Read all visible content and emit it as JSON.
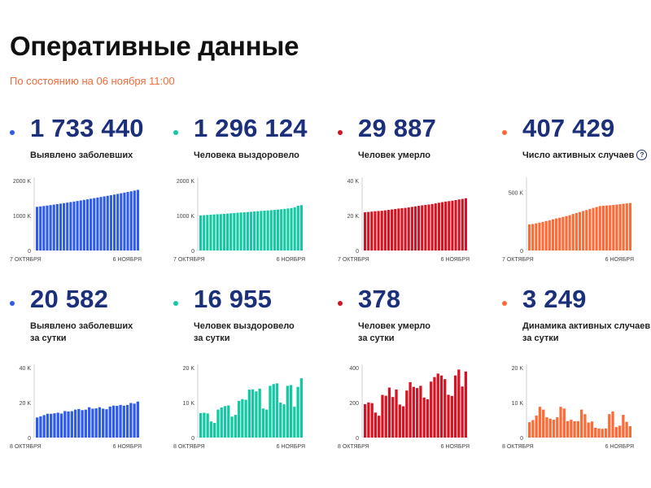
{
  "header": {
    "title": "Оперативные данные",
    "subtitle": "По состоянию на 06 ноября 11:00"
  },
  "cards": [
    {
      "id": "cases-total",
      "value": "1 733 440",
      "label": [
        "Выявлено заболевших"
      ],
      "color": "#2f5be9",
      "help": false,
      "chart_data": {
        "type": "bar",
        "yticks": [
          "0",
          "1000 K",
          "2000 K"
        ],
        "ylim": [
          0,
          2000000
        ],
        "xstart": "7 ОКТЯБРЯ",
        "xend": "6 НОЯБРЯ",
        "values": [
          1248619,
          1260112,
          1272238,
          1285084,
          1298718,
          1312310,
          1326178,
          1340409,
          1354163,
          1369313,
          1384235,
          1399334,
          1415316,
          1431635,
          1447335,
          1463306,
          1480646,
          1497167,
          1513877,
          1531224,
          1547774,
          1563976,
          1581693,
          1599976,
          1618116,
          1636781,
          1655038,
          1673686,
          1693454,
          1712858,
          1733440
        ]
      }
    },
    {
      "id": "recovered-total",
      "value": "1 296 124",
      "label": [
        "Человека выздоровело"
      ],
      "color": "#13c9a3",
      "help": false,
      "chart_data": {
        "type": "bar",
        "yticks": [
          "0",
          "1000 K",
          "2000 K"
        ],
        "ylim": [
          0,
          2000000
        ],
        "xstart": "7 ОКТЯБРЯ",
        "xend": "6 НОЯБРЯ",
        "values": [
          1003180,
          1010990,
          1016360,
          1023460,
          1030128,
          1036210,
          1040742,
          1048000,
          1056180,
          1064250,
          1071880,
          1079490,
          1087560,
          1093570,
          1099750,
          1107540,
          1116000,
          1123840,
          1131600,
          1139600,
          1146100,
          1152600,
          1160500,
          1170400,
          1180100,
          1190600,
          1201800,
          1213900,
          1236800,
          1279200,
          1296124
        ]
      }
    },
    {
      "id": "deaths-total",
      "value": "29 887",
      "label": [
        "Человек умерло"
      ],
      "color": "#d51322",
      "help": false,
      "chart_data": {
        "type": "bar",
        "yticks": [
          "0",
          "20 K",
          "40 K"
        ],
        "ylim": [
          0,
          40000
        ],
        "xstart": "7 ОКТЯБРЯ",
        "xend": "6 НОЯБРЯ",
        "values": [
          21865,
          22056,
          22257,
          22454,
          22597,
          22722,
          22966,
          23205,
          23491,
          23723,
          23998,
          24187,
          24366,
          24635,
          24952,
          25242,
          25525,
          25821,
          26050,
          26269,
          26589,
          26935,
          27301,
          27656,
          27990,
          28235,
          28473,
          28828,
          29217,
          29509,
          29887
        ]
      }
    },
    {
      "id": "active-total",
      "value": "407 429",
      "label": [
        "Число активных случаев"
      ],
      "color": "#fd6a36",
      "help": true,
      "chart_data": {
        "type": "bar",
        "yticks": [
          "0",
          "500 K"
        ],
        "ylim": [
          0,
          600000
        ],
        "xstart": "7 ОКТЯБРЯ",
        "xend": "6 НОЯБРЯ",
        "values": [
          224000,
          227000,
          233000,
          239000,
          245000,
          253000,
          259000,
          268000,
          275000,
          281000,
          288000,
          295000,
          303000,
          313000,
          322000,
          330000,
          339000,
          347000,
          356000,
          365000,
          373000,
          381000,
          384000,
          386000,
          388000,
          391000,
          394000,
          397000,
          401000,
          404000,
          407429
        ]
      }
    },
    {
      "id": "cases-daily",
      "value": "20 582",
      "label": [
        "Выявлено заболевших",
        "за сутки"
      ],
      "color": "#2f5be9",
      "help": false,
      "chart_data": {
        "type": "bar",
        "yticks": [
          "0",
          "20 K",
          "40 K"
        ],
        "ylim": [
          0,
          40000
        ],
        "xstart": "8 ОКТЯБРЯ",
        "xend": "6 НОЯБРЯ",
        "values": [
          11493,
          12126,
          12846,
          13634,
          13592,
          13868,
          14231,
          13754,
          15150,
          14922,
          15099,
          15982,
          16319,
          15700,
          15971,
          17340,
          16521,
          16710,
          17347,
          16550,
          16202,
          17717,
          18283,
          18140,
          18665,
          18257,
          18648,
          19768,
          19404,
          20582
        ]
      }
    },
    {
      "id": "recovered-daily",
      "value": "16 955",
      "label": [
        "Человек выздоровело",
        "за сутки"
      ],
      "color": "#13c9a3",
      "help": false,
      "chart_data": {
        "type": "bar",
        "yticks": [
          "0",
          "10 K",
          "20 K"
        ],
        "ylim": [
          0,
          20000
        ],
        "xstart": "8 ОКТЯБРЯ",
        "xend": "6 НОЯБРЯ",
        "values": [
          7000,
          7100,
          6900,
          4600,
          4200,
          8000,
          8600,
          9000,
          9200,
          6000,
          6500,
          10500,
          11000,
          10800,
          13700,
          13800,
          13200,
          14000,
          8300,
          8000,
          14800,
          15300,
          15500,
          10000,
          9500,
          14800,
          15000,
          8800,
          14500,
          16955
        ]
      }
    },
    {
      "id": "deaths-daily",
      "value": "378",
      "label": [
        "Человек умерло",
        "за сутки"
      ],
      "color": "#d51322",
      "help": false,
      "chart_data": {
        "type": "bar",
        "yticks": [
          "0",
          "200",
          "400"
        ],
        "ylim": [
          0,
          400
        ],
        "xstart": "8 ОКТЯБРЯ",
        "xend": "6 НОЯБРЯ",
        "values": [
          191,
          201,
          197,
          143,
          125,
          244,
          239,
          286,
          232,
          275,
          189,
          179,
          269,
          317,
          290,
          283,
          296,
          229,
          219,
          320,
          346,
          366,
          355,
          334,
          245,
          238,
          355,
          389,
          292,
          378
        ]
      }
    },
    {
      "id": "active-daily",
      "value": "3 249",
      "label": [
        "Динамика активных случаев",
        "за сутки"
      ],
      "color": "#fd6a36",
      "help": false,
      "chart_data": {
        "type": "bar",
        "yticks": [
          "0",
          "10 K",
          "20 K"
        ],
        "ylim": [
          0,
          20000
        ],
        "xstart": "8 ОКТЯБРЯ",
        "xend": "6 НОЯБРЯ",
        "values": [
          4400,
          5000,
          6300,
          8800,
          8000,
          5800,
          5400,
          5100,
          5800,
          8800,
          8300,
          4700,
          5100,
          4700,
          4700,
          8000,
          6700,
          4300,
          4600,
          2800,
          2600,
          2500,
          2600,
          6700,
          7500,
          3000,
          3400,
          6500,
          4500,
          3249
        ]
      }
    }
  ]
}
